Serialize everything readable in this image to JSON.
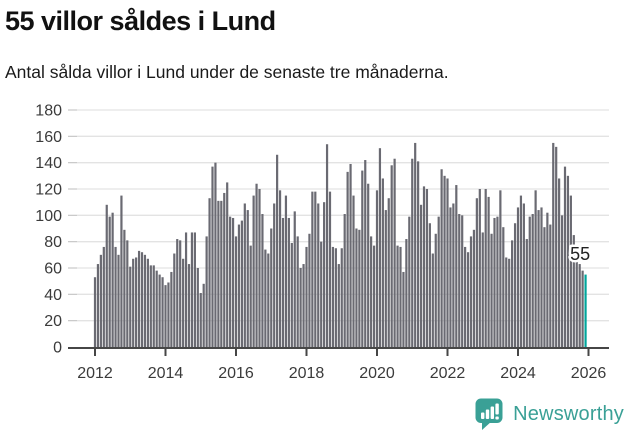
{
  "header": {
    "title": "55 villor såldes i Lund",
    "subtitle": "Antal sålda villor i Lund under de senaste tre månaderna."
  },
  "chart_data": {
    "type": "bar",
    "title": "55 villor såldes i Lund",
    "subtitle": "Antal sålda villor i Lund under de senaste tre månaderna.",
    "frequency": "monthly",
    "period_start": "2012-01",
    "period_end": "2025-12",
    "ylim": [
      0,
      180
    ],
    "y_ticks": [
      0,
      20,
      40,
      60,
      80,
      100,
      120,
      140,
      160,
      180
    ],
    "x_ticks": [
      {
        "label": "2012",
        "month": 0
      },
      {
        "label": "2014",
        "month": 24
      },
      {
        "label": "2016",
        "month": 48
      },
      {
        "label": "2018",
        "month": 72
      },
      {
        "label": "2020",
        "month": 96
      },
      {
        "label": "2022",
        "month": 120
      },
      {
        "label": "2024",
        "month": 144
      },
      {
        "label": "2026",
        "month": 168
      }
    ],
    "grid": "horizontal",
    "legend": "none",
    "bar_color": "#6a6a72",
    "axis_color": "#464646",
    "grid_color": "#e3e3e3",
    "label_color": "#3b3b3b",
    "values": [
      53,
      63,
      70,
      76,
      108,
      99,
      102,
      76,
      70,
      115,
      89,
      81,
      61,
      67,
      68,
      73,
      72,
      70,
      67,
      62,
      62,
      58,
      55,
      53,
      47,
      49,
      57,
      71,
      82,
      81,
      67,
      87,
      63,
      87,
      87,
      60,
      41,
      48,
      84,
      113,
      137,
      140,
      111,
      111,
      117,
      125,
      99,
      98,
      84,
      93,
      96,
      109,
      104,
      77,
      115,
      124,
      120,
      101,
      74,
      71,
      90,
      109,
      146,
      119,
      98,
      115,
      98,
      79,
      103,
      84,
      60,
      63,
      76,
      86,
      118,
      118,
      109,
      80,
      110,
      154,
      118,
      76,
      75,
      63,
      75,
      101,
      133,
      139,
      115,
      90,
      89,
      134,
      142,
      124,
      84,
      77,
      119,
      151,
      128,
      104,
      113,
      138,
      143,
      77,
      76,
      57,
      82,
      99,
      143,
      155,
      141,
      108,
      122,
      120,
      94,
      71,
      86,
      99,
      135,
      130,
      128,
      106,
      109,
      123,
      101,
      100,
      76,
      72,
      84,
      89,
      113,
      120,
      87,
      120,
      114,
      86,
      98,
      99,
      119,
      91,
      68,
      67,
      81,
      94,
      106,
      115,
      109,
      82,
      99,
      101,
      119,
      104,
      106,
      91,
      102,
      93,
      155,
      152,
      128,
      100,
      137,
      130,
      115,
      85,
      77,
      63,
      58,
      55
    ],
    "highlight": {
      "index": 167,
      "value": 55,
      "label": "55",
      "color": "#00a59b"
    }
  },
  "footer": {
    "brand": "Newsworthy",
    "brand_color": "#3aa096",
    "logo_icon": "bar-chart-speech-bubble"
  }
}
